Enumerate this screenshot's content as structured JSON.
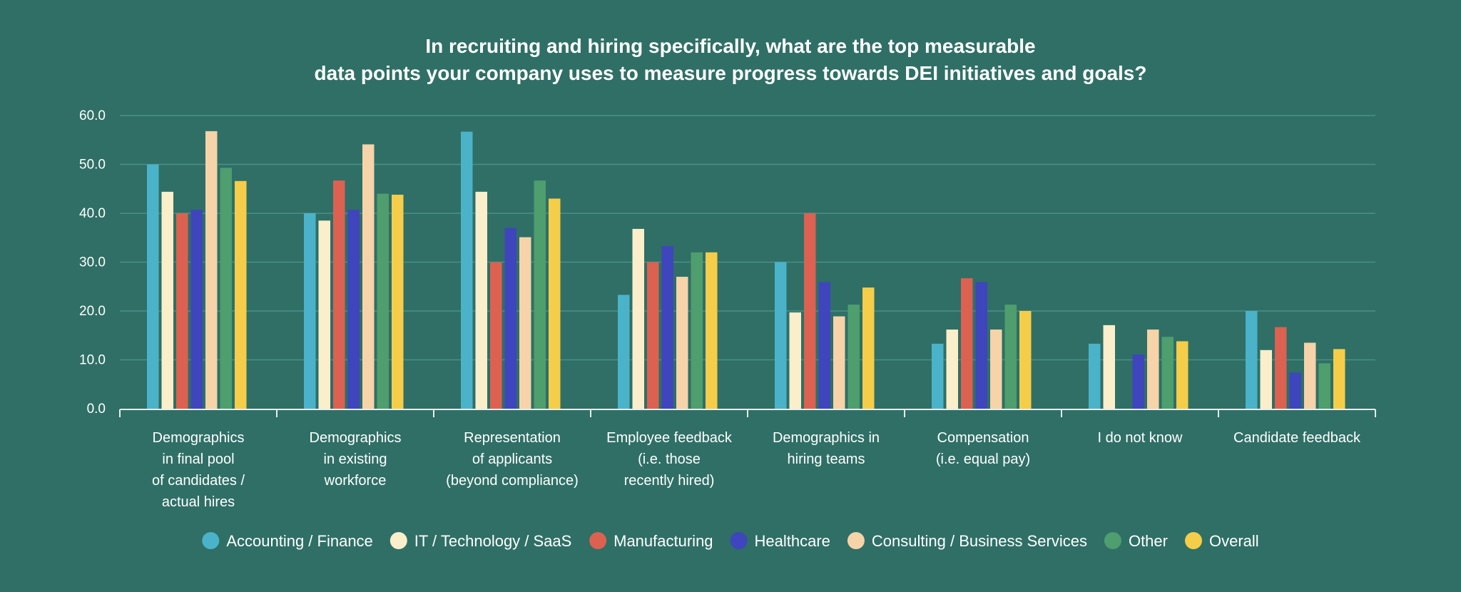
{
  "chart_data": {
    "type": "bar",
    "title_line1": "In recruiting and hiring specifically, what are the top measurable",
    "title_line2": "data points your company uses to measure progress towards DEI initiatives and goals?",
    "xlabel": "",
    "ylabel": "",
    "ylim": [
      0,
      60
    ],
    "yticks": [
      "0.0",
      "10.0",
      "20.0",
      "30.0",
      "40.0",
      "50.0",
      "60.0"
    ],
    "grid": true,
    "legend_position": "bottom",
    "categories": [
      [
        "Demographics",
        "in final pool",
        "of candidates /",
        "actual hires"
      ],
      [
        "Demographics",
        "in existing",
        "workforce"
      ],
      [
        "Representation",
        "of applicants",
        "(beyond compliance)"
      ],
      [
        "Employee feedback",
        "(i.e. those",
        "recently hired)"
      ],
      [
        "Demographics in",
        "hiring teams"
      ],
      [
        "Compensation",
        "(i.e. equal pay)"
      ],
      [
        "I do not know"
      ],
      [
        "Candidate feedback"
      ]
    ],
    "series": [
      {
        "name": "Accounting / Finance",
        "color": "#4ab3c9",
        "values": [
          50.0,
          40.0,
          56.7,
          23.3,
          30.0,
          13.3,
          13.3,
          20.0
        ]
      },
      {
        "name": "IT / Technology / SaaS",
        "color": "#fbeecb",
        "values": [
          44.4,
          38.5,
          44.4,
          36.8,
          19.7,
          16.2,
          17.1,
          12.0
        ]
      },
      {
        "name": "Manufacturing",
        "color": "#dc6150",
        "values": [
          40.0,
          46.7,
          30.0,
          30.0,
          40.0,
          26.7,
          0.0,
          16.7
        ]
      },
      {
        "name": "Healthcare",
        "color": "#3f45bc",
        "values": [
          40.7,
          40.7,
          37.0,
          33.3,
          25.9,
          25.9,
          11.1,
          7.4
        ]
      },
      {
        "name": "Consulting / Business Services",
        "color": "#f6d3a8",
        "values": [
          56.8,
          54.1,
          35.1,
          27.0,
          18.9,
          16.2,
          16.2,
          13.5
        ]
      },
      {
        "name": "Other",
        "color": "#4e9e6e",
        "values": [
          49.3,
          44.0,
          46.7,
          32.0,
          21.3,
          21.3,
          14.7,
          9.3
        ]
      },
      {
        "name": "Overall",
        "color": "#f6cd48",
        "values": [
          46.6,
          43.8,
          43.0,
          32.0,
          24.8,
          20.0,
          13.8,
          12.2
        ]
      }
    ]
  }
}
